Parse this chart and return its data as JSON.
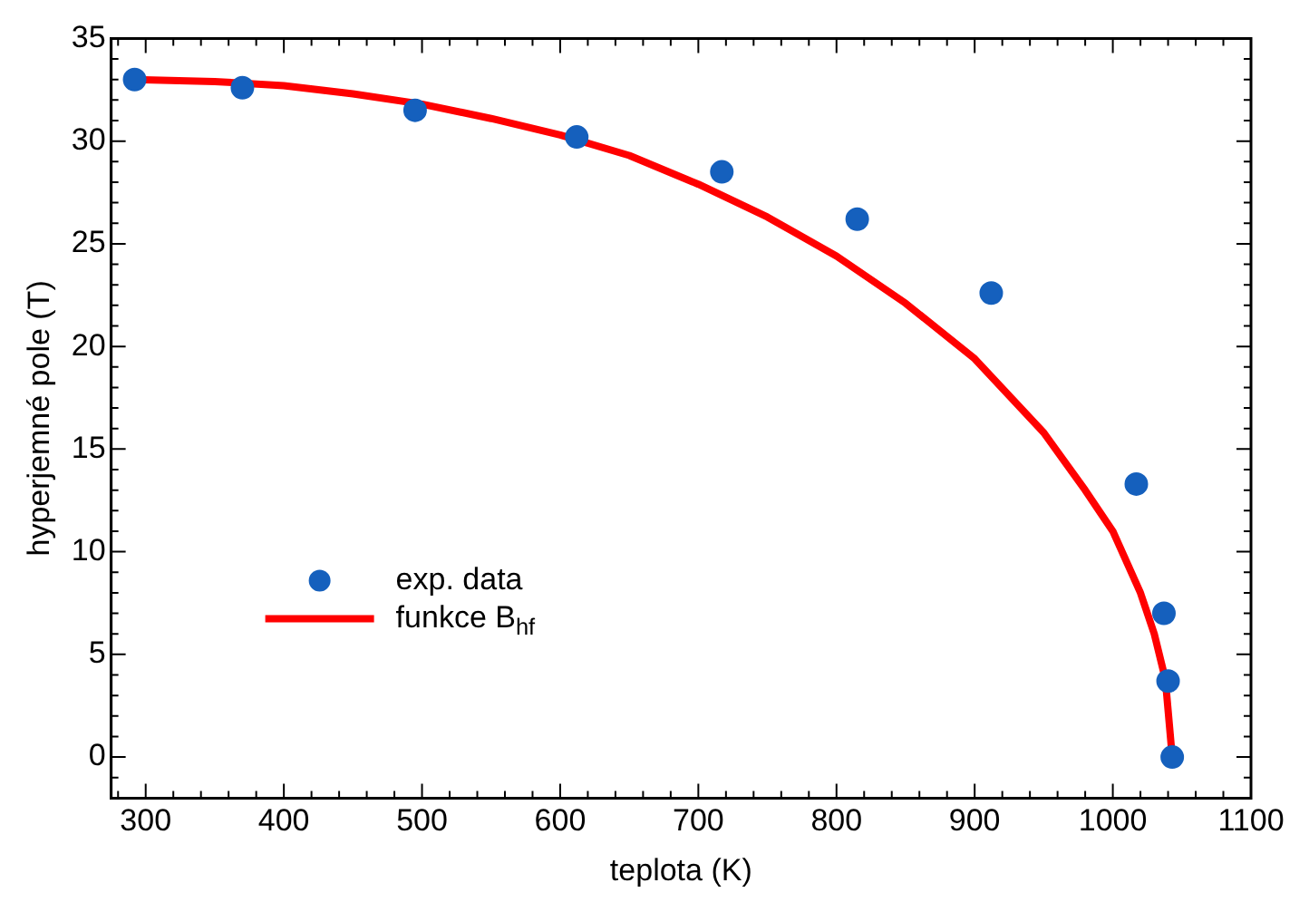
{
  "chart_data": {
    "type": "scatter",
    "xlabel": "teplota (K)",
    "ylabel": "hyperjemné pole (T)",
    "xlim": [
      275,
      1100
    ],
    "xticks": [
      300,
      400,
      500,
      600,
      700,
      800,
      900,
      1000,
      1100
    ],
    "ylim": [
      -2,
      35
    ],
    "yticks": [
      0,
      5,
      10,
      15,
      20,
      25,
      30,
      35
    ],
    "grid": false,
    "legend": "bottom left",
    "series": [
      {
        "name": "exp. data",
        "marker": "circle",
        "color": "#1560bd",
        "x": [
          292,
          370,
          495,
          612,
          717,
          815,
          912,
          1017,
          1037,
          1040,
          1043
        ],
        "values": [
          33,
          32.6,
          31.5,
          30.2,
          28.5,
          26.2,
          22.6,
          13.3,
          7,
          3.7,
          0
        ]
      },
      {
        "name": "funkce B$_{hf}$",
        "type": "line",
        "marker": "none",
        "line_style": "solid",
        "color": "#ff0000",
        "x": [
          292,
          350,
          400,
          450,
          500,
          550,
          600,
          650,
          700,
          750,
          800,
          850,
          900,
          950,
          980,
          1000,
          1020,
          1030,
          1038,
          1043
        ],
        "values": [
          33,
          32.9,
          32.7,
          32.3,
          31.8,
          31.1,
          30.3,
          29.3,
          27.9,
          26.3,
          24.4,
          22.1,
          19.4,
          15.8,
          13,
          11,
          8,
          6,
          3.8,
          0
        ]
      }
    ]
  }
}
